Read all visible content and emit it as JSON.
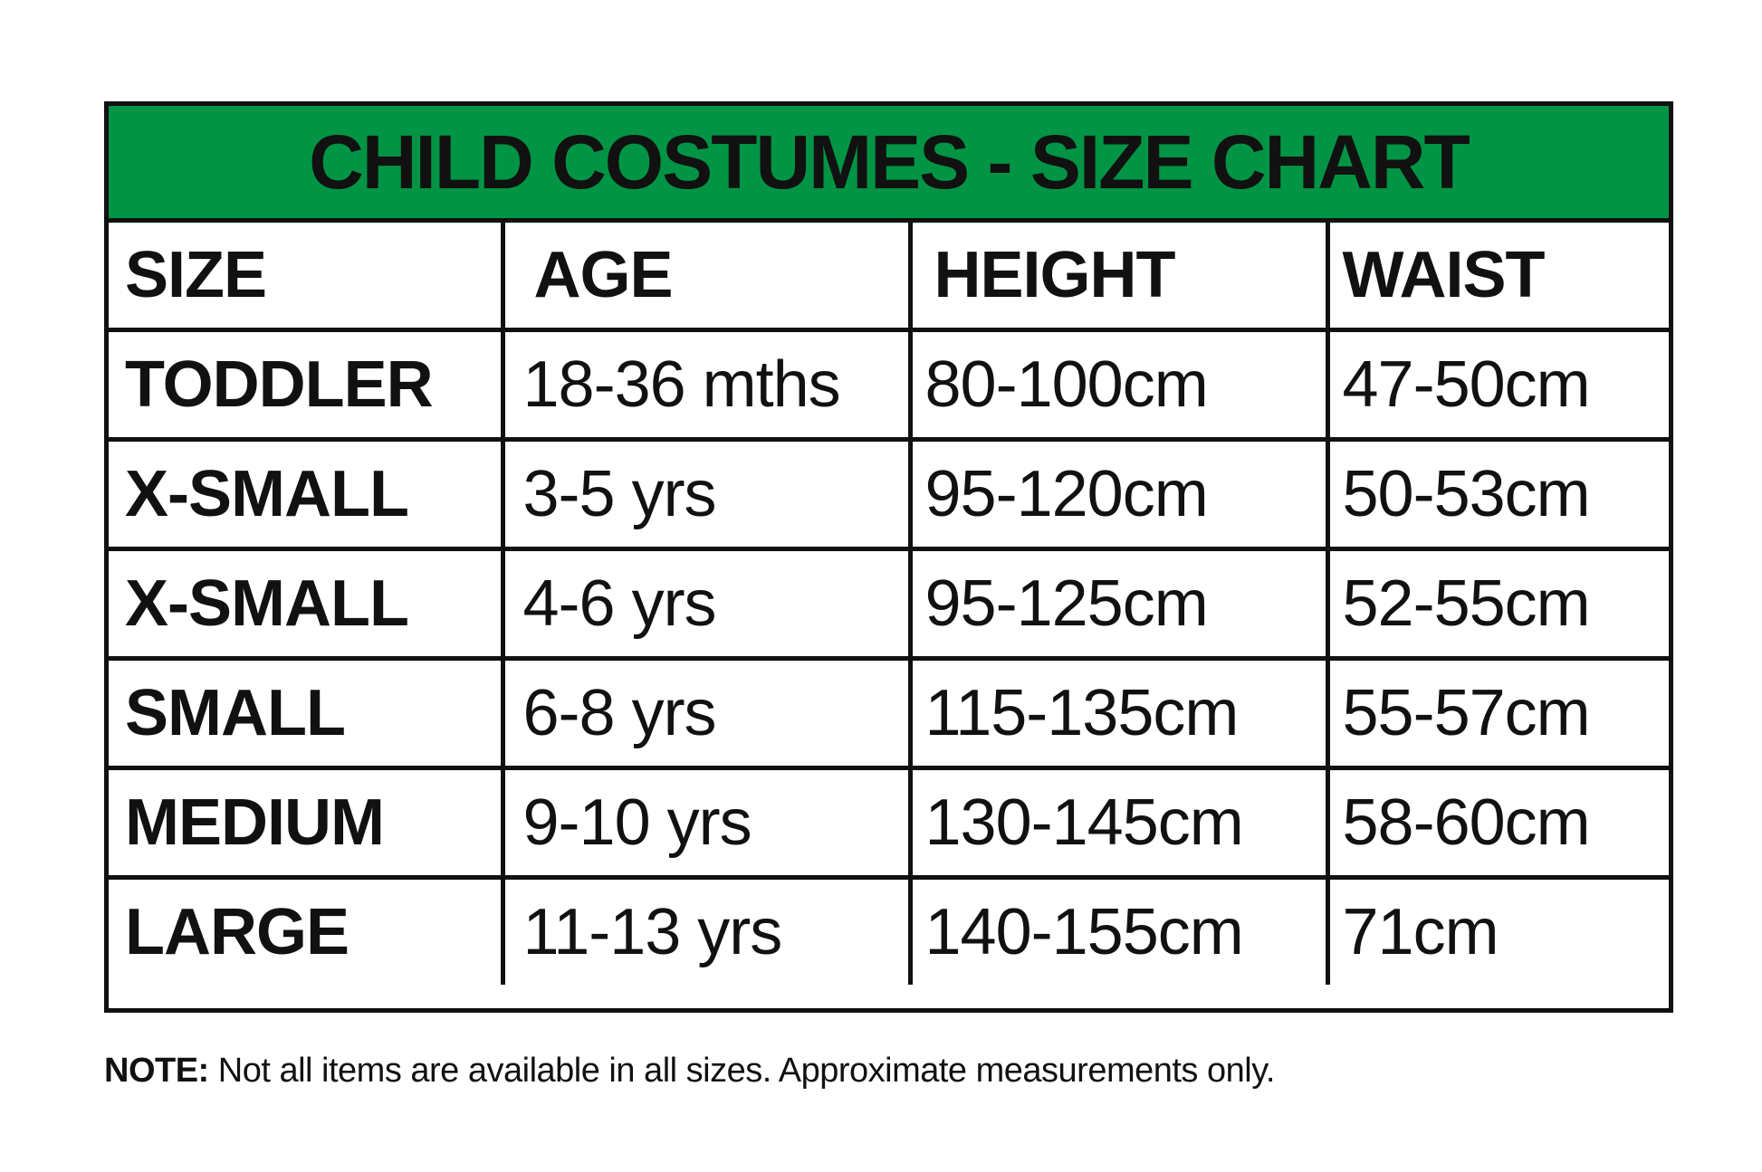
{
  "title": "CHILD COSTUMES - SIZE CHART",
  "colors": {
    "header_bg": "#009444",
    "border": "#111111"
  },
  "columns": [
    "SIZE",
    "AGE",
    "HEIGHT",
    "WAIST"
  ],
  "rows": [
    {
      "size": "TODDLER",
      "age": "18-36 mths",
      "height": "80-100cm",
      "waist": "47-50cm"
    },
    {
      "size": "X-SMALL",
      "age": "3-5 yrs",
      "height": "95-120cm",
      "waist": "50-53cm"
    },
    {
      "size": "X-SMALL",
      "age": "4-6 yrs",
      "height": "95-125cm",
      "waist": "52-55cm"
    },
    {
      "size": "SMALL",
      "age": "6-8 yrs",
      "height": "115-135cm",
      "waist": "55-57cm"
    },
    {
      "size": "MEDIUM",
      "age": "9-10 yrs",
      "height": "130-145cm",
      "waist": "58-60cm"
    },
    {
      "size": "LARGE",
      "age": "11-13 yrs",
      "height": "140-155cm",
      "waist": "71cm"
    }
  ],
  "note": {
    "label": "NOTE:",
    "text": " Not all items are available in all sizes. Approximate measurements only."
  }
}
